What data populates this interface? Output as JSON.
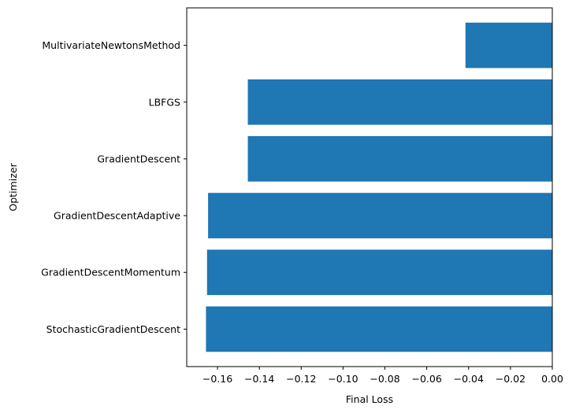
{
  "chart_data": {
    "type": "bar",
    "orientation": "horizontal",
    "title": "",
    "xlabel": "Final Loss",
    "ylabel": "Optimizer",
    "categories": [
      "StochasticGradientDescent",
      "GradientDescentMomentum",
      "GradientDescentAdaptive",
      "GradientDescent",
      "LBFGS",
      "MultivariateNewtonsMethod"
    ],
    "values": [
      -0.1655,
      -0.165,
      -0.1645,
      -0.1455,
      -0.1455,
      -0.0415
    ],
    "xlim": [
      -0.1747,
      0.0
    ],
    "xticks": [
      -0.16,
      -0.14,
      -0.12,
      -0.1,
      -0.08,
      -0.06,
      -0.04,
      -0.02,
      0.0
    ],
    "xtick_labels": [
      "−0.16",
      "−0.14",
      "−0.12",
      "−0.10",
      "−0.08",
      "−0.06",
      "−0.04",
      "−0.02",
      "0.00"
    ],
    "bar_color": "#1f77b4",
    "grid": false,
    "legend": "none"
  }
}
